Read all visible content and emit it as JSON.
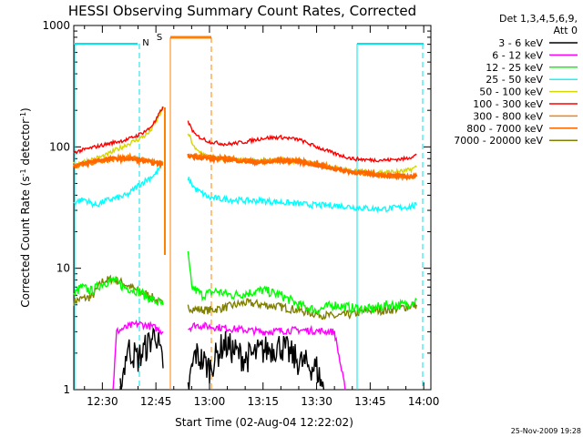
{
  "chart_data": {
    "type": "line",
    "title": "HESSI Observing Summary Count Rates, Corrected",
    "xlabel": "Start Time (02-Aug-04 12:22:02)",
    "ylabel_base": "Corrected Count Rate (s",
    "ylabel_sup1": "-1",
    "ylabel_mid": " detector",
    "ylabel_sup2": "-1",
    "ylabel_end": ")",
    "y_scale": "log",
    "ylim": [
      1,
      1000
    ],
    "xlim_minutes": [
      742,
      842
    ],
    "grid": false,
    "legend_placement": "outside-right",
    "x_ticks": [
      {
        "label": "12:30",
        "minute": 750
      },
      {
        "label": "12:45",
        "minute": 765
      },
      {
        "label": "13:00",
        "minute": 780
      },
      {
        "label": "13:15",
        "minute": 795
      },
      {
        "label": "13:30",
        "minute": 810
      },
      {
        "label": "13:45",
        "minute": 825
      },
      {
        "label": "14:00",
        "minute": 840
      }
    ],
    "y_ticks": [
      {
        "label": "1",
        "value": 1
      },
      {
        "label": "10",
        "value": 10
      },
      {
        "label": "100",
        "value": 100
      },
      {
        "label": "1000",
        "value": 1000
      }
    ],
    "legend_header_1": "Det 1,3,4,5,6,9,",
    "legend_header_2": "Att 0",
    "series": [
      {
        "name": "3 - 6 keV",
        "color": "#000000",
        "seg1": [
          [
            755,
            1
          ],
          [
            757,
            2.2
          ],
          [
            760,
            1.8
          ],
          [
            763,
            2.4
          ],
          [
            765,
            3
          ],
          [
            767,
            1.5
          ]
        ],
        "seg2": [
          [
            774,
            1
          ],
          [
            776,
            2.0
          ],
          [
            780,
            1.5
          ],
          [
            784,
            2.4
          ],
          [
            790,
            1.8
          ],
          [
            795,
            2.1
          ],
          [
            800,
            2.3
          ],
          [
            805,
            1.7
          ],
          [
            810,
            1.5
          ],
          [
            812,
            1
          ]
        ]
      },
      {
        "name": "6 - 12 keV",
        "color": "#ff00ff",
        "seg1": [
          [
            753,
            1
          ],
          [
            754,
            3
          ],
          [
            756,
            3.2
          ],
          [
            760,
            3.5
          ],
          [
            764,
            3.3
          ],
          [
            767,
            3.0
          ]
        ],
        "seg2": [
          [
            774,
            3.2
          ],
          [
            776,
            3.4
          ],
          [
            785,
            3.2
          ],
          [
            795,
            3.0
          ],
          [
            805,
            3.1
          ],
          [
            815,
            3.0
          ],
          [
            818,
            1
          ]
        ]
      },
      {
        "name": "12 - 25 keV",
        "color": "#00ff00",
        "seg1": [
          [
            742,
            6
          ],
          [
            744,
            7
          ],
          [
            747,
            6.5
          ],
          [
            750,
            7.5
          ],
          [
            753,
            8
          ],
          [
            756,
            7
          ],
          [
            760,
            6.5
          ],
          [
            764,
            5.5
          ],
          [
            767,
            5
          ]
        ],
        "seg2": [
          [
            774,
            13
          ],
          [
            775,
            7
          ],
          [
            778,
            6
          ],
          [
            782,
            6.5
          ],
          [
            786,
            6
          ],
          [
            790,
            6.2
          ],
          [
            795,
            6.6
          ],
          [
            800,
            6
          ],
          [
            805,
            5
          ],
          [
            810,
            4.5
          ],
          [
            815,
            5
          ],
          [
            820,
            4.7
          ],
          [
            825,
            4.6
          ],
          [
            830,
            5
          ],
          [
            835,
            5
          ],
          [
            838,
            5.5
          ]
        ]
      },
      {
        "name": "25 - 50 keV",
        "color": "#00ffff",
        "seg1": [
          [
            742,
            35
          ],
          [
            745,
            37
          ],
          [
            748,
            33
          ],
          [
            751,
            36
          ],
          [
            754,
            38
          ],
          [
            757,
            40
          ],
          [
            760,
            48
          ],
          [
            763,
            55
          ],
          [
            765,
            60
          ],
          [
            767,
            75
          ]
        ],
        "seg2": [
          [
            774,
            55
          ],
          [
            776,
            45
          ],
          [
            780,
            38
          ],
          [
            785,
            37
          ],
          [
            790,
            36
          ],
          [
            795,
            36
          ],
          [
            800,
            35
          ],
          [
            805,
            34
          ],
          [
            810,
            33
          ],
          [
            815,
            33
          ],
          [
            820,
            32
          ],
          [
            825,
            31
          ],
          [
            830,
            31
          ],
          [
            835,
            32
          ],
          [
            838,
            33
          ]
        ]
      },
      {
        "name": "50 - 100 keV",
        "color": "#d7d700",
        "seg1": [
          [
            742,
            72
          ],
          [
            745,
            76
          ],
          [
            748,
            80
          ],
          [
            751,
            85
          ],
          [
            754,
            95
          ],
          [
            757,
            105
          ],
          [
            760,
            115
          ],
          [
            763,
            130
          ],
          [
            765,
            160
          ],
          [
            767,
            210
          ]
        ],
        "seg2": [
          [
            774,
            130
          ],
          [
            776,
            95
          ],
          [
            780,
            82
          ],
          [
            785,
            78
          ],
          [
            790,
            77
          ],
          [
            795,
            76
          ],
          [
            800,
            78
          ],
          [
            805,
            76
          ],
          [
            810,
            72
          ],
          [
            815,
            67
          ],
          [
            820,
            63
          ],
          [
            825,
            62
          ],
          [
            830,
            62
          ],
          [
            835,
            63
          ],
          [
            838,
            68
          ]
        ]
      },
      {
        "name": "100 - 300 keV",
        "color": "#ff0000",
        "seg1": [
          [
            742,
            90
          ],
          [
            745,
            95
          ],
          [
            748,
            100
          ],
          [
            751,
            105
          ],
          [
            754,
            110
          ],
          [
            757,
            115
          ],
          [
            760,
            125
          ],
          [
            763,
            140
          ],
          [
            765,
            165
          ],
          [
            767,
            215
          ]
        ],
        "seg2": [
          [
            774,
            160
          ],
          [
            776,
            125
          ],
          [
            780,
            110
          ],
          [
            785,
            105
          ],
          [
            790,
            110
          ],
          [
            795,
            118
          ],
          [
            800,
            120
          ],
          [
            805,
            115
          ],
          [
            810,
            100
          ],
          [
            815,
            88
          ],
          [
            820,
            80
          ],
          [
            825,
            78
          ],
          [
            830,
            78
          ],
          [
            835,
            80
          ],
          [
            838,
            86
          ]
        ]
      },
      {
        "name": "300 - 800 keV",
        "color": "#ff8000",
        "seg1": [
          [
            742,
            68
          ],
          [
            745,
            72
          ],
          [
            748,
            75
          ],
          [
            751,
            78
          ],
          [
            754,
            80
          ],
          [
            757,
            82
          ],
          [
            760,
            80
          ],
          [
            763,
            77
          ],
          [
            765,
            74
          ],
          [
            767,
            73
          ]
        ],
        "seg2": [
          [
            774,
            82
          ],
          [
            776,
            84
          ],
          [
            780,
            82
          ],
          [
            785,
            80
          ],
          [
            790,
            77
          ],
          [
            795,
            75
          ],
          [
            800,
            78
          ],
          [
            805,
            77
          ],
          [
            810,
            72
          ],
          [
            815,
            67
          ],
          [
            820,
            62
          ],
          [
            825,
            60
          ],
          [
            830,
            58
          ],
          [
            835,
            57
          ],
          [
            838,
            57
          ]
        ]
      },
      {
        "name": "800 - 7000 keV",
        "color": "#ff6600",
        "seg1": [
          [
            742,
            70
          ],
          [
            745,
            73
          ],
          [
            748,
            77
          ],
          [
            751,
            79
          ],
          [
            754,
            80
          ],
          [
            757,
            80
          ],
          [
            760,
            78
          ],
          [
            763,
            75
          ],
          [
            765,
            73
          ],
          [
            767,
            72
          ]
        ],
        "seg2": [
          [
            774,
            85
          ],
          [
            776,
            83
          ],
          [
            780,
            80
          ],
          [
            785,
            79
          ],
          [
            790,
            76
          ],
          [
            795,
            74
          ],
          [
            800,
            77
          ],
          [
            805,
            76
          ],
          [
            810,
            71
          ],
          [
            815,
            66
          ],
          [
            820,
            62
          ],
          [
            825,
            60
          ],
          [
            830,
            58
          ],
          [
            835,
            57
          ],
          [
            838,
            57
          ]
        ]
      },
      {
        "name": "7000 - 20000 keV",
        "color": "#808000",
        "seg1": [
          [
            742,
            5.3
          ],
          [
            744,
            5.6
          ],
          [
            747,
            5.8
          ],
          [
            750,
            7.8
          ],
          [
            753,
            8.2
          ],
          [
            756,
            7.5
          ],
          [
            760,
            6.5
          ],
          [
            763,
            6
          ],
          [
            765,
            5.5
          ],
          [
            767,
            5
          ]
        ],
        "seg2": [
          [
            774,
            4.8
          ],
          [
            776,
            4.6
          ],
          [
            780,
            4.5
          ],
          [
            785,
            4.8
          ],
          [
            790,
            5.2
          ],
          [
            795,
            5
          ],
          [
            800,
            4.8
          ],
          [
            805,
            4.5
          ],
          [
            810,
            4.2
          ],
          [
            815,
            4.0
          ],
          [
            820,
            4.2
          ],
          [
            825,
            4.5
          ],
          [
            830,
            4.5
          ],
          [
            835,
            4.8
          ],
          [
            838,
            5
          ]
        ]
      }
    ],
    "marker_n": "N",
    "marker_s": "S",
    "timestamp": "25-Nov-2009 19:28"
  }
}
